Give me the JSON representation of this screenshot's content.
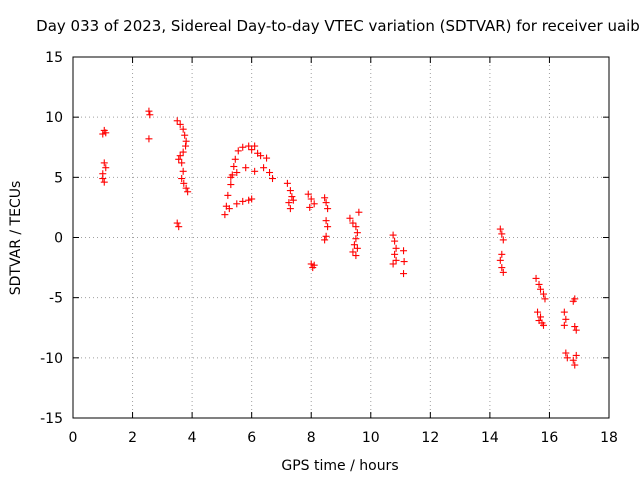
{
  "chart_data": {
    "type": "scatter",
    "title": "Day 033 of 2023, Sidereal Day-to-day VTEC variation (SDTVAR) for receiver uaib",
    "xlabel": "GPS time / hours",
    "ylabel": "SDTVAR / TECUs",
    "xlim": [
      0,
      18
    ],
    "ylim": [
      -15,
      15
    ],
    "x_ticks": [
      0,
      2,
      4,
      6,
      8,
      10,
      12,
      14,
      16,
      18
    ],
    "x_tick_labels": [
      "0",
      "2",
      "4",
      "6",
      "8",
      "10",
      "12",
      "14",
      "16",
      "18"
    ],
    "y_ticks": [
      -15,
      -10,
      -5,
      0,
      5,
      10,
      15
    ],
    "y_tick_labels": [
      "-15",
      "-10",
      "-5",
      "0",
      "5",
      "10",
      "15"
    ],
    "grid": true,
    "marker": "+",
    "color": "#ff0000",
    "series": [
      {
        "name": "SDTVAR",
        "points": [
          [
            1.0,
            8.6
          ],
          [
            1.05,
            8.9
          ],
          [
            1.1,
            8.7
          ],
          [
            1.0,
            5.3
          ],
          [
            1.05,
            4.6
          ],
          [
            1.1,
            5.8
          ],
          [
            1.05,
            6.2
          ],
          [
            1.0,
            4.9
          ],
          [
            2.55,
            10.5
          ],
          [
            2.58,
            10.2
          ],
          [
            2.55,
            8.2
          ],
          [
            3.5,
            9.7
          ],
          [
            3.6,
            9.4
          ],
          [
            3.7,
            9.0
          ],
          [
            3.75,
            8.5
          ],
          [
            3.8,
            8.0
          ],
          [
            3.78,
            7.6
          ],
          [
            3.7,
            7.1
          ],
          [
            3.6,
            6.8
          ],
          [
            3.55,
            6.5
          ],
          [
            3.65,
            6.2
          ],
          [
            3.7,
            5.5
          ],
          [
            3.65,
            4.9
          ],
          [
            3.72,
            4.5
          ],
          [
            3.8,
            4.1
          ],
          [
            3.85,
            3.8
          ],
          [
            3.5,
            1.2
          ],
          [
            3.55,
            0.9
          ],
          [
            5.1,
            1.9
          ],
          [
            5.15,
            2.6
          ],
          [
            5.2,
            3.5
          ],
          [
            5.3,
            4.4
          ],
          [
            5.35,
            5.2
          ],
          [
            5.4,
            5.9
          ],
          [
            5.45,
            6.5
          ],
          [
            5.55,
            7.2
          ],
          [
            5.7,
            7.5
          ],
          [
            5.9,
            7.6
          ],
          [
            6.0,
            7.3
          ],
          [
            6.1,
            7.6
          ],
          [
            5.5,
            2.8
          ],
          [
            5.7,
            3.0
          ],
          [
            5.9,
            3.1
          ],
          [
            6.0,
            3.2
          ],
          [
            5.3,
            5.0
          ],
          [
            5.5,
            5.4
          ],
          [
            5.8,
            5.8
          ],
          [
            6.1,
            5.5
          ],
          [
            6.4,
            5.8
          ],
          [
            6.6,
            5.4
          ],
          [
            6.7,
            4.9
          ],
          [
            6.3,
            6.8
          ],
          [
            6.5,
            6.6
          ],
          [
            6.2,
            7.0
          ],
          [
            5.25,
            2.4
          ],
          [
            7.2,
            4.5
          ],
          [
            7.3,
            3.9
          ],
          [
            7.35,
            3.4
          ],
          [
            7.25,
            2.9
          ],
          [
            7.3,
            2.4
          ],
          [
            7.4,
            3.1
          ],
          [
            7.9,
            3.6
          ],
          [
            8.0,
            3.2
          ],
          [
            8.1,
            2.8
          ],
          [
            7.95,
            2.5
          ],
          [
            8.0,
            -2.2
          ],
          [
            8.05,
            -2.5
          ],
          [
            8.1,
            -2.3
          ],
          [
            8.45,
            3.3
          ],
          [
            8.5,
            2.9
          ],
          [
            8.55,
            2.4
          ],
          [
            8.5,
            1.4
          ],
          [
            8.55,
            0.9
          ],
          [
            8.45,
            -0.2
          ],
          [
            8.5,
            0.1
          ],
          [
            9.3,
            1.6
          ],
          [
            9.4,
            1.2
          ],
          [
            9.5,
            0.9
          ],
          [
            9.55,
            0.4
          ],
          [
            9.5,
            -0.1
          ],
          [
            9.45,
            -0.6
          ],
          [
            9.4,
            -1.2
          ],
          [
            9.5,
            -1.5
          ],
          [
            9.6,
            2.1
          ],
          [
            9.55,
            -0.9
          ],
          [
            10.75,
            0.2
          ],
          [
            10.8,
            -0.3
          ],
          [
            10.85,
            -0.9
          ],
          [
            10.8,
            -1.4
          ],
          [
            10.85,
            -1.9
          ],
          [
            10.75,
            -2.2
          ],
          [
            11.1,
            -1.1
          ],
          [
            11.12,
            -2.0
          ],
          [
            11.1,
            -3.0
          ],
          [
            14.35,
            0.7
          ],
          [
            14.4,
            0.3
          ],
          [
            14.45,
            -0.2
          ],
          [
            14.4,
            -1.4
          ],
          [
            14.35,
            -1.9
          ],
          [
            14.4,
            -2.5
          ],
          [
            14.45,
            -2.9
          ],
          [
            15.55,
            -3.4
          ],
          [
            15.65,
            -3.9
          ],
          [
            15.7,
            -4.3
          ],
          [
            15.8,
            -4.7
          ],
          [
            15.85,
            -5.1
          ],
          [
            15.6,
            -6.2
          ],
          [
            15.7,
            -6.6
          ],
          [
            15.75,
            -7.1
          ],
          [
            15.8,
            -7.3
          ],
          [
            15.65,
            -6.9
          ],
          [
            16.5,
            -6.2
          ],
          [
            16.55,
            -6.8
          ],
          [
            16.5,
            -7.3
          ],
          [
            16.55,
            -9.6
          ],
          [
            16.6,
            -10.0
          ],
          [
            16.8,
            -5.3
          ],
          [
            16.85,
            -5.1
          ],
          [
            16.85,
            -7.4
          ],
          [
            16.9,
            -7.7
          ],
          [
            16.8,
            -10.2
          ],
          [
            16.85,
            -10.6
          ],
          [
            16.9,
            -9.8
          ]
        ]
      }
    ]
  }
}
